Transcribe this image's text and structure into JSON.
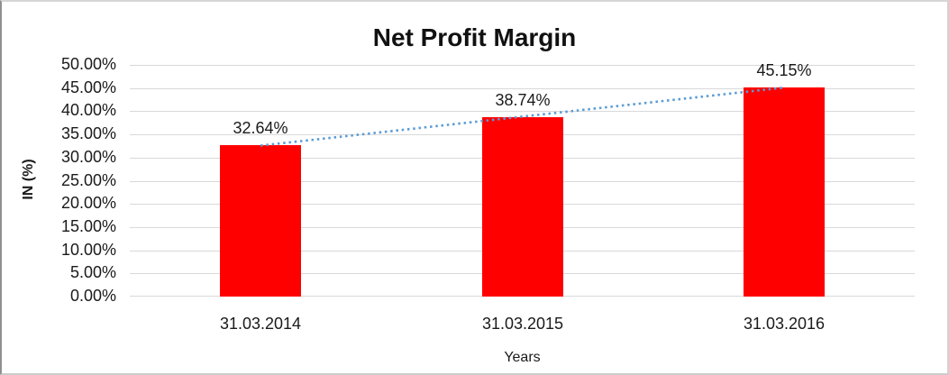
{
  "chart_data": {
    "type": "bar",
    "title": "Net Profit Margin",
    "categories": [
      "31.03.2014",
      "31.03.2015",
      "31.03.2016"
    ],
    "values": [
      32.64,
      38.74,
      45.15
    ],
    "data_labels": [
      "32.64%",
      "38.74%",
      "45.15%"
    ],
    "xlabel": "Years",
    "ylabel": "IN (%)",
    "ylim": [
      0,
      50
    ],
    "ytick_step": 5,
    "ytick_labels": [
      "0.00%",
      "5.00%",
      "10.00%",
      "15.00%",
      "20.00%",
      "25.00%",
      "30.00%",
      "35.00%",
      "40.00%",
      "45.00%",
      "50.00%"
    ],
    "grid": true,
    "legend_position": "none",
    "bar_color": "#FF0000",
    "gridline_color": "#D9D9D9",
    "text_color": "#1a1a1a",
    "trendline": {
      "type": "linear",
      "style": "dotted",
      "color": "#5B9BD5"
    }
  }
}
